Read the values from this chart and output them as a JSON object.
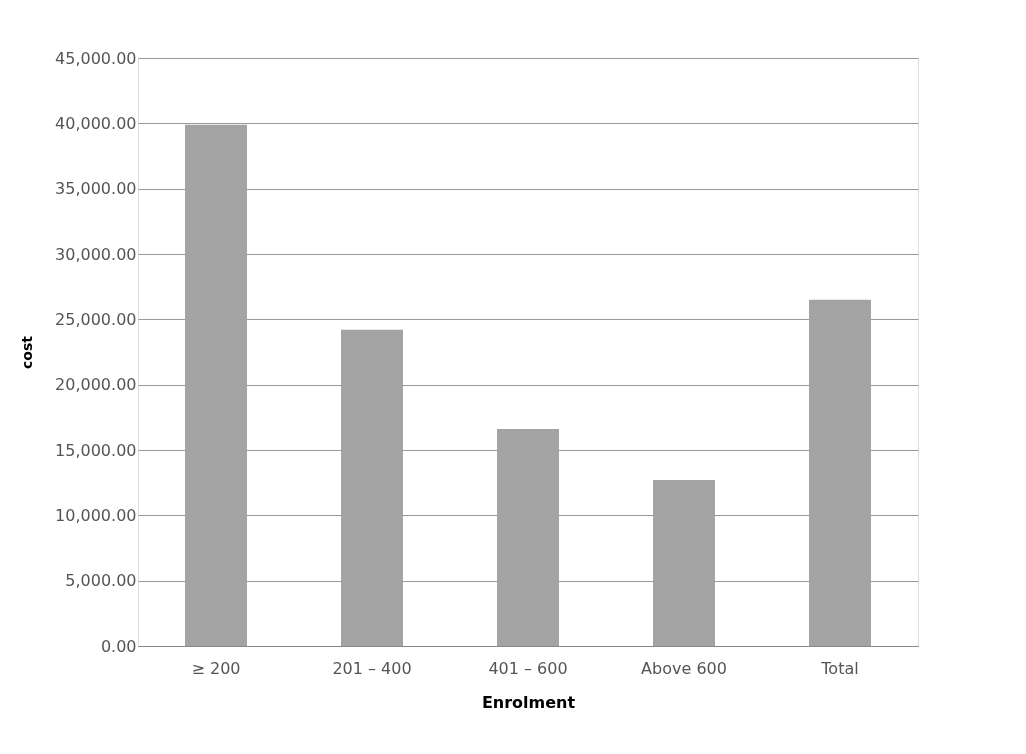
{
  "chart_data": {
    "type": "bar",
    "xlabel": "Enrolment",
    "ylabel": "cost",
    "categories": [
      "≥ 200",
      "201 – 400",
      "401 – 600",
      "Above 600",
      "Total"
    ],
    "values": [
      39900,
      24200,
      16600,
      12700,
      26500
    ],
    "color": "#a3a3a3",
    "ylim": [
      0,
      45000
    ],
    "yticks": [
      {
        "value": 0,
        "label": "0.00"
      },
      {
        "value": 5000,
        "label": "5,000.00"
      },
      {
        "value": 10000,
        "label": "10,000.00"
      },
      {
        "value": 15000,
        "label": "15,000.00"
      },
      {
        "value": 20000,
        "label": "20,000.00"
      },
      {
        "value": 25000,
        "label": "25,000.00"
      },
      {
        "value": 30000,
        "label": "30,000.00"
      },
      {
        "value": 35000,
        "label": "35,000.00"
      },
      {
        "value": 40000,
        "label": "40,000.00"
      },
      {
        "value": 45000,
        "label": "45,000.00"
      }
    ],
    "grid": "y"
  }
}
